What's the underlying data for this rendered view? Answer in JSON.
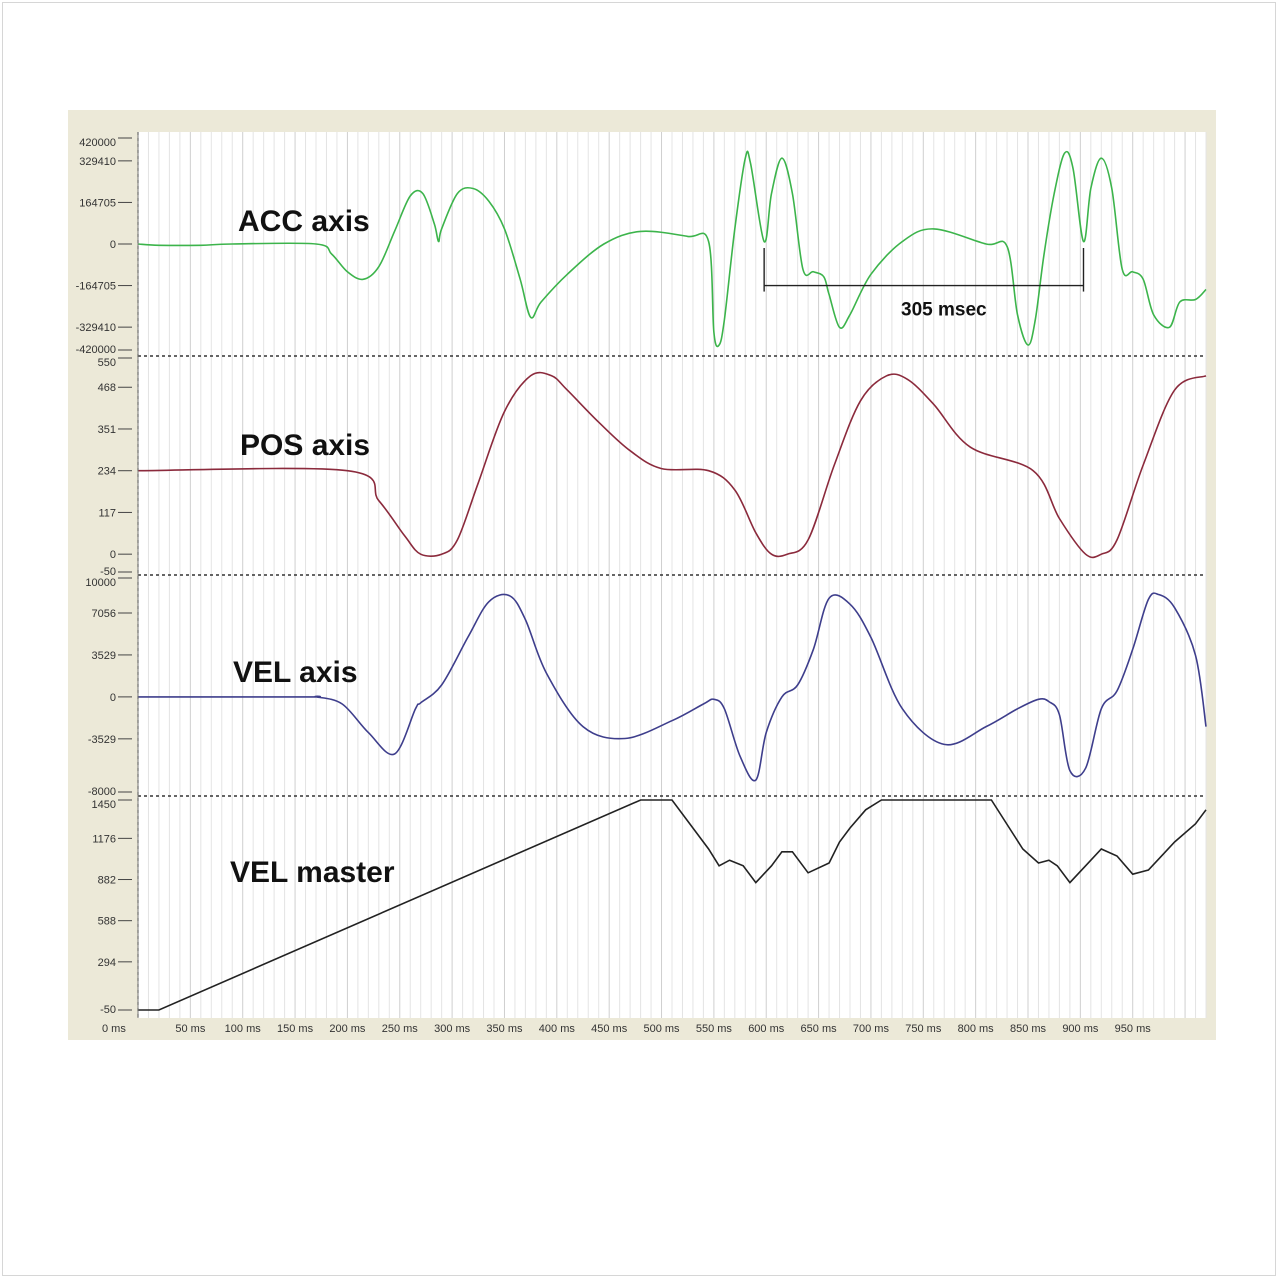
{
  "chart_data": {
    "type": "line",
    "x_unit": "ms",
    "x_ticks": [
      "0 ms",
      "50 ms",
      "100 ms",
      "150 ms",
      "200 ms",
      "250 ms",
      "300 ms",
      "350 ms",
      "400 ms",
      "450 ms",
      "500 ms",
      "550 ms",
      "600 ms",
      "650 ms",
      "700 ms",
      "750 ms",
      "800 ms",
      "850 ms",
      "900 ms",
      "950 ms"
    ],
    "xlim": [
      0,
      1020
    ],
    "annotation": {
      "label": "305 msec",
      "x_start": 598,
      "x_end": 903,
      "channel": 0,
      "y": -164705
    },
    "channels": [
      {
        "name": "ACC axis",
        "color": "#3cb44b",
        "ylim": [
          -420000,
          420000
        ],
        "y_ticks": [
          "420000",
          "329410",
          "164705",
          "0",
          "-164705",
          "-329410",
          "-420000"
        ],
        "y_tick_values": [
          420000,
          329410,
          164705,
          0,
          -164705,
          -329410,
          -420000
        ],
        "x": [
          0,
          20,
          60,
          90,
          170,
          185,
          200,
          215,
          230,
          245,
          260,
          272,
          283,
          287,
          290,
          305,
          320,
          335,
          350,
          365,
          375,
          385,
          410,
          445,
          480,
          525,
          545,
          550,
          555,
          560,
          570,
          580,
          585,
          598,
          605,
          615,
          625,
          635,
          645,
          655,
          660,
          670,
          680,
          700,
          730,
          760,
          810,
          830,
          840,
          850,
          857,
          865,
          875,
          885,
          893,
          903,
          910,
          920,
          930,
          940,
          950,
          960,
          970,
          985,
          995,
          1010,
          1020
        ],
        "y": [
          0,
          -5000,
          -5000,
          0,
          0,
          -40000,
          -110000,
          -140000,
          -90000,
          50000,
          190000,
          200000,
          80000,
          10000,
          60000,
          200000,
          220000,
          170000,
          60000,
          -140000,
          -290000,
          -230000,
          -120000,
          0,
          50000,
          30000,
          10000,
          -350000,
          -400000,
          -300000,
          60000,
          340000,
          320000,
          10000,
          200000,
          340000,
          200000,
          -100000,
          -110000,
          -130000,
          -200000,
          -330000,
          -280000,
          -120000,
          10000,
          60000,
          0,
          -10000,
          -280000,
          -400000,
          -300000,
          -50000,
          200000,
          360000,
          300000,
          10000,
          220000,
          340000,
          220000,
          -100000,
          -110000,
          -140000,
          -280000,
          -330000,
          -230000,
          -220000,
          -180000
        ]
      },
      {
        "name": "POS axis",
        "color": "#8b2a3c",
        "ylim": [
          -50,
          550
        ],
        "y_ticks": [
          "550",
          "468",
          "351",
          "234",
          "117",
          "0",
          "-50"
        ],
        "y_tick_values": [
          550,
          468,
          351,
          234,
          117,
          0,
          -50
        ],
        "x": [
          0,
          200,
          230,
          255,
          270,
          290,
          305,
          325,
          350,
          375,
          395,
          410,
          440,
          470,
          500,
          545,
          570,
          590,
          605,
          620,
          640,
          665,
          690,
          715,
          735,
          760,
          795,
          855,
          880,
          905,
          920,
          935,
          960,
          990,
          1020
        ],
        "y": [
          234,
          234,
          150,
          50,
          0,
          0,
          40,
          200,
          400,
          500,
          500,
          460,
          370,
          290,
          240,
          234,
          180,
          60,
          0,
          0,
          40,
          250,
          430,
          500,
          490,
          420,
          300,
          234,
          100,
          0,
          0,
          40,
          250,
          460,
          500
        ]
      },
      {
        "name": "VEL axis",
        "color": "#3e3e8c",
        "ylim": [
          -8000,
          10000
        ],
        "y_ticks": [
          "10000",
          "7056",
          "3529",
          "0",
          "-3529",
          "-8000"
        ],
        "y_tick_values": [
          10000,
          7056,
          3529,
          0,
          -3529,
          -8000
        ],
        "x": [
          0,
          160,
          170,
          195,
          220,
          245,
          265,
          270,
          290,
          315,
          335,
          355,
          370,
          390,
          425,
          465,
          510,
          540,
          550,
          560,
          575,
          590,
          600,
          615,
          630,
          645,
          660,
          680,
          700,
          730,
          770,
          810,
          840,
          860,
          870,
          880,
          890,
          905,
          920,
          935,
          950,
          965,
          975,
          990,
          1010,
          1020
        ],
        "y": [
          0,
          0,
          0,
          -600,
          -3000,
          -4800,
          -1000,
          -500,
          1000,
          5000,
          8000,
          8500,
          6500,
          2000,
          -2500,
          -3500,
          -2000,
          -600,
          -200,
          -1000,
          -5000,
          -7000,
          -3000,
          0,
          1000,
          4000,
          8300,
          7800,
          5000,
          -1000,
          -4000,
          -2500,
          -1000,
          -200,
          -400,
          -1500,
          -6200,
          -6000,
          -1000,
          500,
          4000,
          8200,
          8600,
          7500,
          3500,
          -2500
        ]
      },
      {
        "name": "VEL master",
        "color": "#222222",
        "ylim": [
          -50,
          1450
        ],
        "y_ticks": [
          "1450",
          "1176",
          "882",
          "588",
          "294",
          "-50"
        ],
        "y_tick_values": [
          1450,
          1176,
          882,
          588,
          294,
          -50
        ],
        "x": [
          0,
          20,
          480,
          510,
          545,
          555,
          565,
          578,
          590,
          605,
          615,
          625,
          640,
          660,
          670,
          680,
          695,
          710,
          730,
          780,
          815,
          845,
          860,
          870,
          878,
          890,
          905,
          920,
          935,
          950,
          965,
          975,
          990,
          1010,
          1020
        ],
        "y": [
          -50,
          -50,
          1450,
          1450,
          1100,
          980,
          1020,
          980,
          860,
          980,
          1080,
          1080,
          930,
          1000,
          1150,
          1250,
          1380,
          1450,
          1450,
          1450,
          1450,
          1100,
          1000,
          1020,
          980,
          860,
          980,
          1100,
          1050,
          920,
          950,
          1030,
          1150,
          1280,
          1380
        ]
      }
    ]
  }
}
